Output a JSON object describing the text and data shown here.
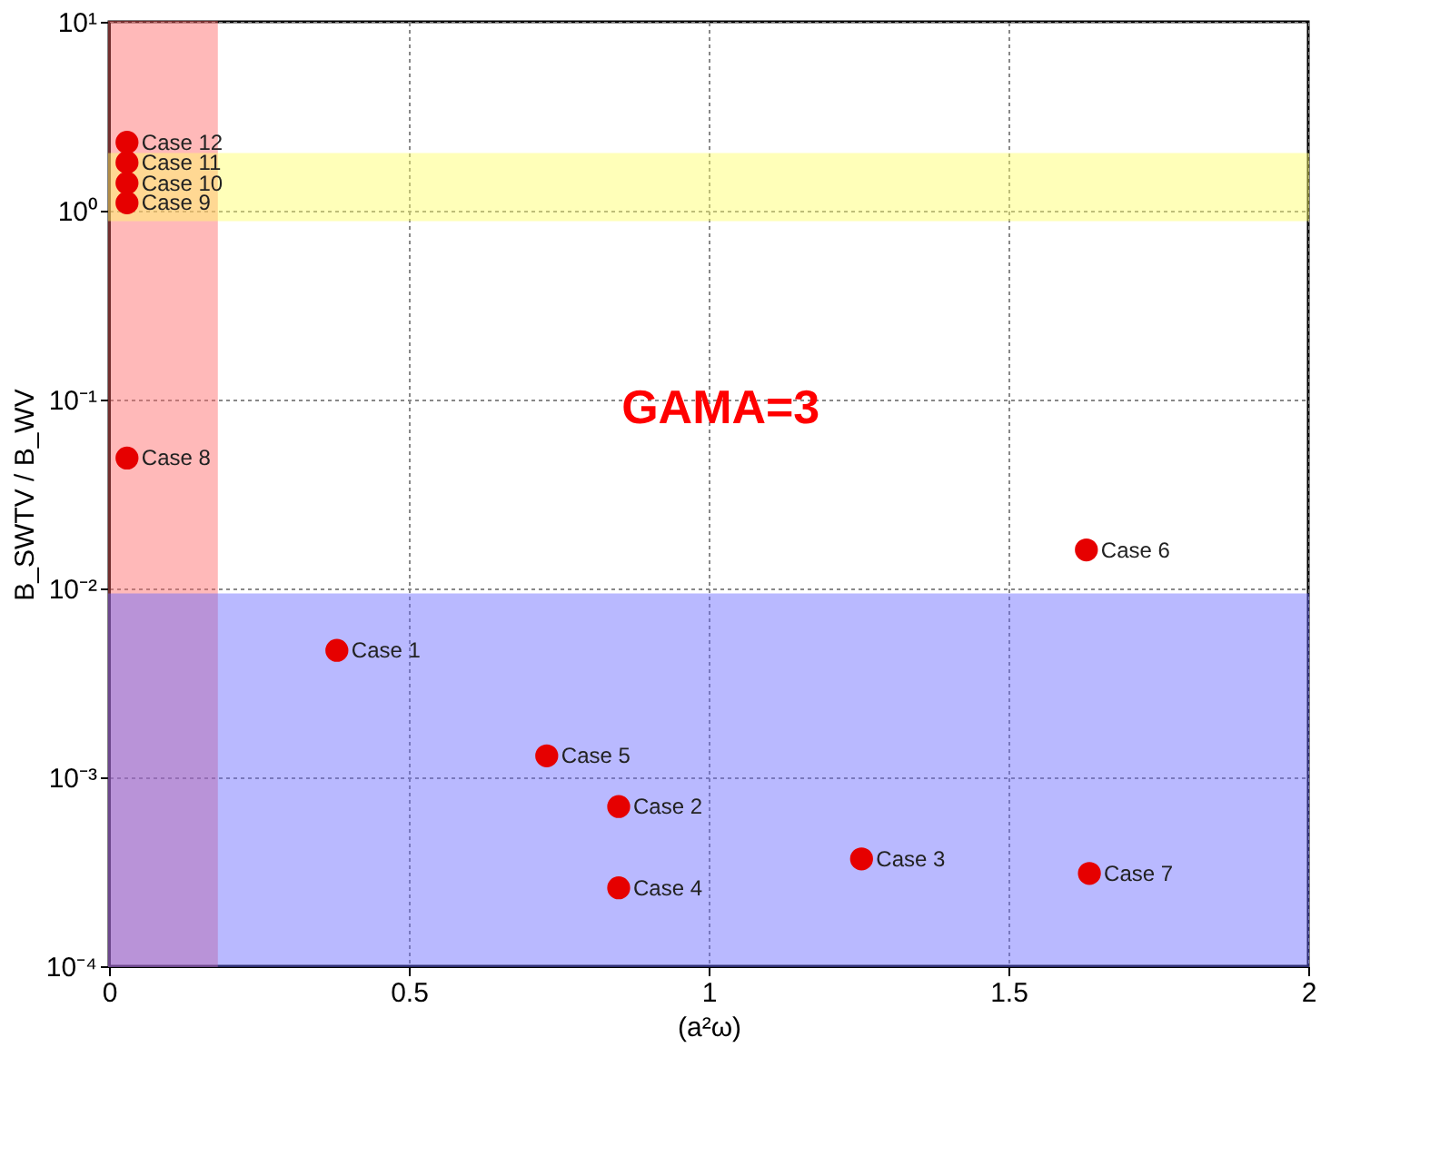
{
  "chart_data": {
    "type": "scatter",
    "xlabel": "(a²ω)",
    "ylabel": "B_SWTV / B_WV",
    "log": "y",
    "grid": true,
    "marker": "circle",
    "xlim": [
      0,
      2
    ],
    "xticks": [
      0,
      0.5,
      1,
      1.5,
      2
    ],
    "ylim": [
      0.0001,
      10
    ],
    "yticks": [
      {
        "value": 0.0001,
        "label": "10⁻⁴"
      },
      {
        "value": 0.001,
        "label": "10⁻³"
      },
      {
        "value": 0.01,
        "label": "10⁻²"
      },
      {
        "value": 0.1,
        "label": "10⁻¹"
      },
      {
        "value": 1,
        "label": "10⁰"
      },
      {
        "value": 10,
        "label": "10¹"
      }
    ],
    "series": [
      {
        "color": "#e60000",
        "x": [
          0.38,
          0.85,
          1.255,
          0.85,
          0.73,
          1.63,
          1.635,
          0.03,
          0.03,
          0.03,
          0.03,
          0.03
        ],
        "values": [
          0.0047,
          0.0007,
          0.00037,
          0.00026,
          0.0013,
          0.016,
          0.00031,
          0.049,
          1.1,
          1.4,
          1.8,
          2.3
        ]
      }
    ],
    "bands": [
      {
        "axis": "x",
        "from": 0,
        "to": 0.18,
        "color": "#ff6666"
      },
      {
        "axis": "y",
        "from": 0.0001,
        "to": 0.0093,
        "color": "#6666ff"
      },
      {
        "axis": "y",
        "from": 0.89,
        "to": 2.0,
        "color": "#ffff66"
      }
    ],
    "annotations": [
      {
        "text": "Case 1",
        "x": 0.38,
        "y": 0.0047
      },
      {
        "text": "Case 2",
        "x": 0.85,
        "y": 0.0007
      },
      {
        "text": "Case 3",
        "x": 1.255,
        "y": 0.00037
      },
      {
        "text": "Case 4",
        "x": 0.85,
        "y": 0.00026
      },
      {
        "text": "Case 5",
        "x": 0.73,
        "y": 0.0013
      },
      {
        "text": "Case 6",
        "x": 1.63,
        "y": 0.016
      },
      {
        "text": "Case 7",
        "x": 1.635,
        "y": 0.00031
      },
      {
        "text": "Case 8",
        "x": 0.03,
        "y": 0.049
      },
      {
        "text": "Case 9",
        "x": 0.03,
        "y": 1.1
      },
      {
        "text": "Case 10",
        "x": 0.03,
        "y": 1.4
      },
      {
        "text": "Case 11",
        "x": 0.03,
        "y": 1.8
      },
      {
        "text": "Case 12",
        "x": 0.03,
        "y": 2.3
      },
      "GAMA=3"
    ]
  }
}
